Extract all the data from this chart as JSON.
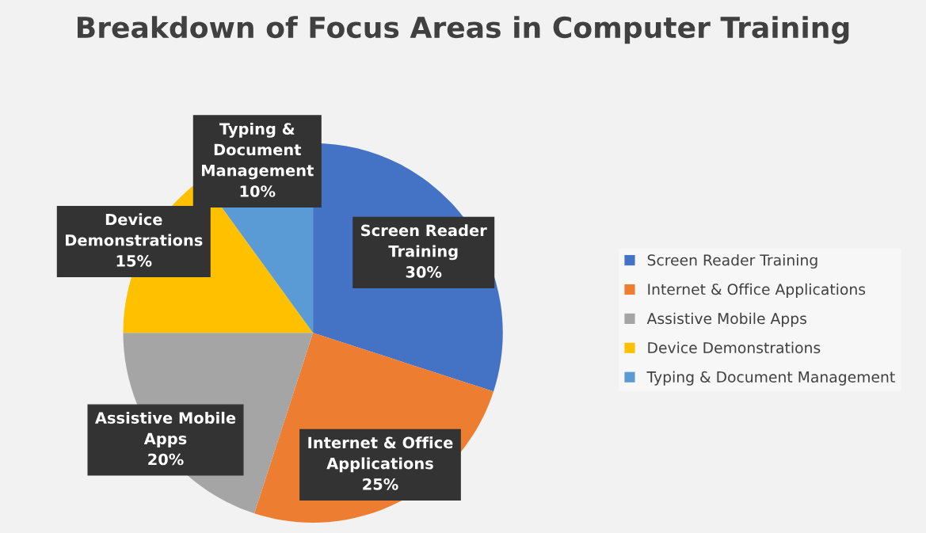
{
  "chart_data": {
    "type": "pie",
    "title": "Breakdown of Focus Areas in Computer Training",
    "categories": [
      "Screen Reader Training",
      "Internet & Office Applications",
      "Assistive Mobile Apps",
      "Device Demonstrations",
      "Typing & Document Management"
    ],
    "values": [
      30,
      25,
      20,
      15,
      10
    ],
    "colors": [
      "#4472c4",
      "#ed7d31",
      "#a5a5a5",
      "#ffc000",
      "#5b9bd5"
    ],
    "value_labels": [
      "Screen Reader\nTraining\n30%",
      "Internet & Office\nApplications\n25%",
      "Assistive Mobile\nApps\n20%",
      "Device\nDemonstrations\n15%",
      "Typing &\nDocument\nManagement\n10%"
    ],
    "legend": "right"
  }
}
